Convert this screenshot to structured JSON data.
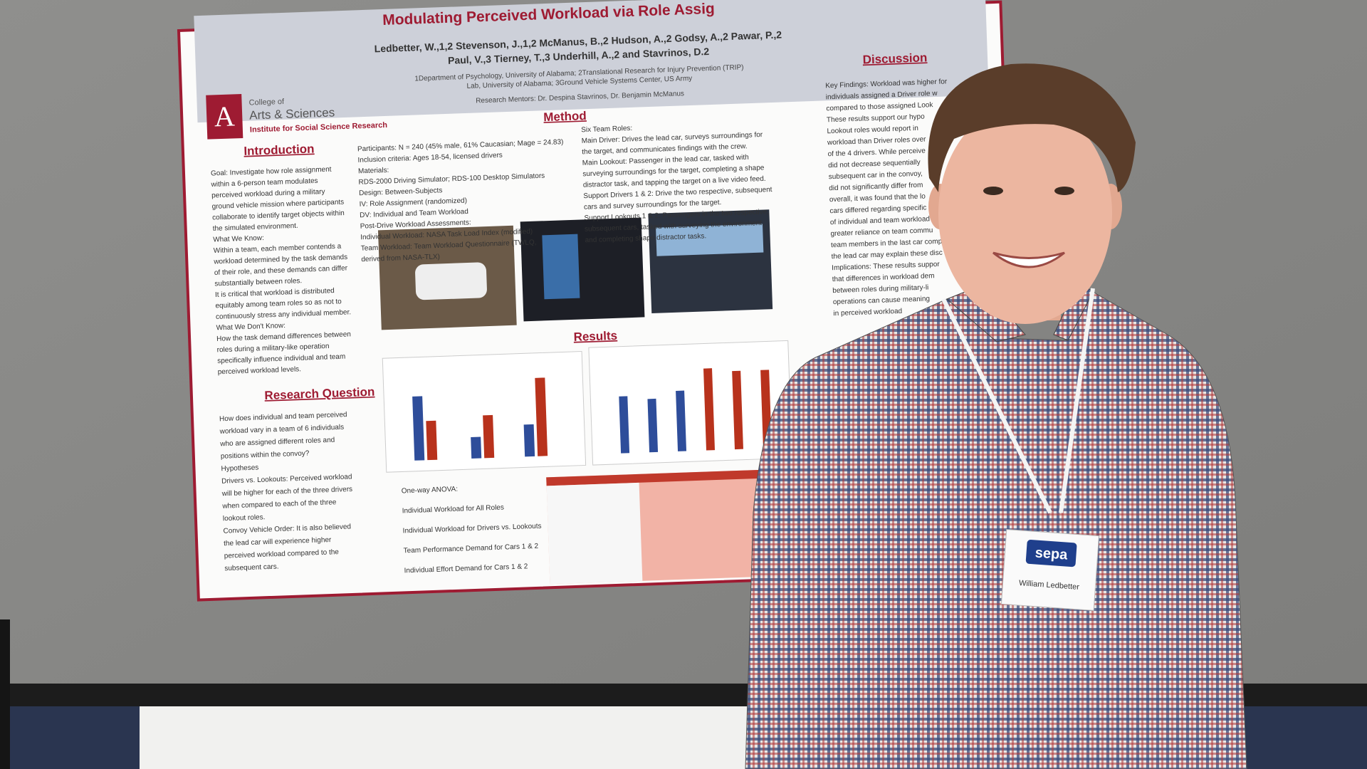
{
  "poster": {
    "title": "Modulating Perceived Workload via Role Assig",
    "authors": [
      "Ledbetter, W.,1,2 Stevenson, J.,1,2 McManus, B.,2 Hudson, A.,2 Godsy, A.,2 Pawar, P.,2",
      "Paul, V.,3 Tierney, T.,3 Underhill, A.,2 and Stavrinos, D.2"
    ],
    "affiliations": [
      "1Department of Psychology, University of Alabama; 2Translational Research for Injury Prevention (TRIP)",
      "Lab, University of Alabama; 3Ground Vehicle Systems Center, US Army"
    ],
    "mentors": "Research Mentors: Dr. Despina Stavrinos, Dr. Benjamin McManus",
    "logo": {
      "letter": "A",
      "college": "College of",
      "name": "Arts & Sciences",
      "institute": "Institute for Social Science Research"
    },
    "introduction": {
      "heading": "Introduction",
      "lines": [
        "Goal: Investigate how role assignment",
        "within a 6-person team modulates",
        "perceived workload during a military",
        "ground vehicle mission where participants",
        "collaborate to identify target objects within",
        "the simulated environment.",
        "What We Know:",
        "Within a team, each member contends a",
        "workload determined by the task demands",
        "of their role, and these demands can differ",
        "substantially between roles.",
        "It is critical that workload is distributed",
        "equitably among team roles so as not to",
        "continuously stress any individual member.",
        "What We Don't Know:",
        "How the task demand differences between",
        "roles during a military-like operation",
        "specifically influence individual and team",
        "perceived workload levels."
      ]
    },
    "method": {
      "heading": "Method",
      "left": [
        "Participants: N = 240 (45% male, 61% Caucasian; Mage = 24.83)",
        "Inclusion criteria: Ages 18-54, licensed drivers",
        "Materials:",
        "RDS-2000 Driving Simulator; RDS-100 Desktop Simulators",
        "Design: Between-Subjects",
        "IV: Role Assignment (randomized)",
        "DV: Individual and Team Workload",
        "Post-Drive Workload Assessments:",
        "Individual Workload: NASA Task Load Index (modified)",
        "Team Workload: Team Workload Questionnaire (TWLQ,",
        "derived from NASA-TLX)"
      ],
      "right": [
        "Six Team Roles:",
        "Main Driver: Drives the lead car, surveys surroundings for",
        "the target, and communicates findings with the crew.",
        "Main Lookout: Passenger in the lead car, tasked with",
        "surveying surroundings for the target, completing a shape",
        "distractor task, and tapping the target on a live video feed.",
        "Support Drivers 1 & 2: Drive the two respective, subsequent",
        "cars and survey surroundings for the target.",
        "Support Lookouts 1 & 2: Passengers in the two respective,",
        "subsequent cars, tasked with surveying the environment",
        "and completing shape distractor tasks."
      ]
    },
    "results": {
      "heading": "Results",
      "lines": [
        "One-way ANOVA:",
        "Individual Workload for All Roles",
        "Individual Workload for Drivers vs. Lookouts",
        "Team Performance Demand for Cars 1 & 2",
        "Individual Effort Demand for Cars 1 & 2"
      ]
    },
    "research_question": {
      "heading": "Research Question",
      "lines": [
        "How does individual and team perceived",
        "workload vary in a team of 6 individuals",
        "who are assigned different roles and",
        "positions within the convoy?",
        "Hypotheses",
        "Drivers vs. Lookouts: Perceived workload",
        "will be higher for each of the three drivers",
        "when compared to each of the three",
        "lookout roles.",
        "Convoy Vehicle Order: It is also believed",
        "the lead car will experience higher",
        "perceived workload compared to the",
        "subsequent cars."
      ]
    },
    "discussion": {
      "heading": "Discussion",
      "lines": [
        "Key Findings: Workload was higher for",
        "individuals assigned a Driver role w",
        "compared to those assigned Look",
        "These results support our hypo",
        "Lookout roles would report in",
        "workload than Driver roles over",
        "of the 4 drivers. While perceive",
        "did not decrease sequentially",
        "subsequent car in the convoy,",
        "did not significantly differ from",
        "overall, it was found that the lo",
        "cars differed regarding specific",
        "of individual and team workload",
        "greater reliance on team commu",
        "team members in the last car comp",
        "the lead car may explain these disc",
        "Implications: These results suppor",
        "that differences in workload dem",
        "between roles during military-li",
        "operations can cause meaning",
        "in perceived workload"
      ]
    }
  },
  "badge": {
    "logo": "sepa",
    "name": "William Ledbetter"
  }
}
